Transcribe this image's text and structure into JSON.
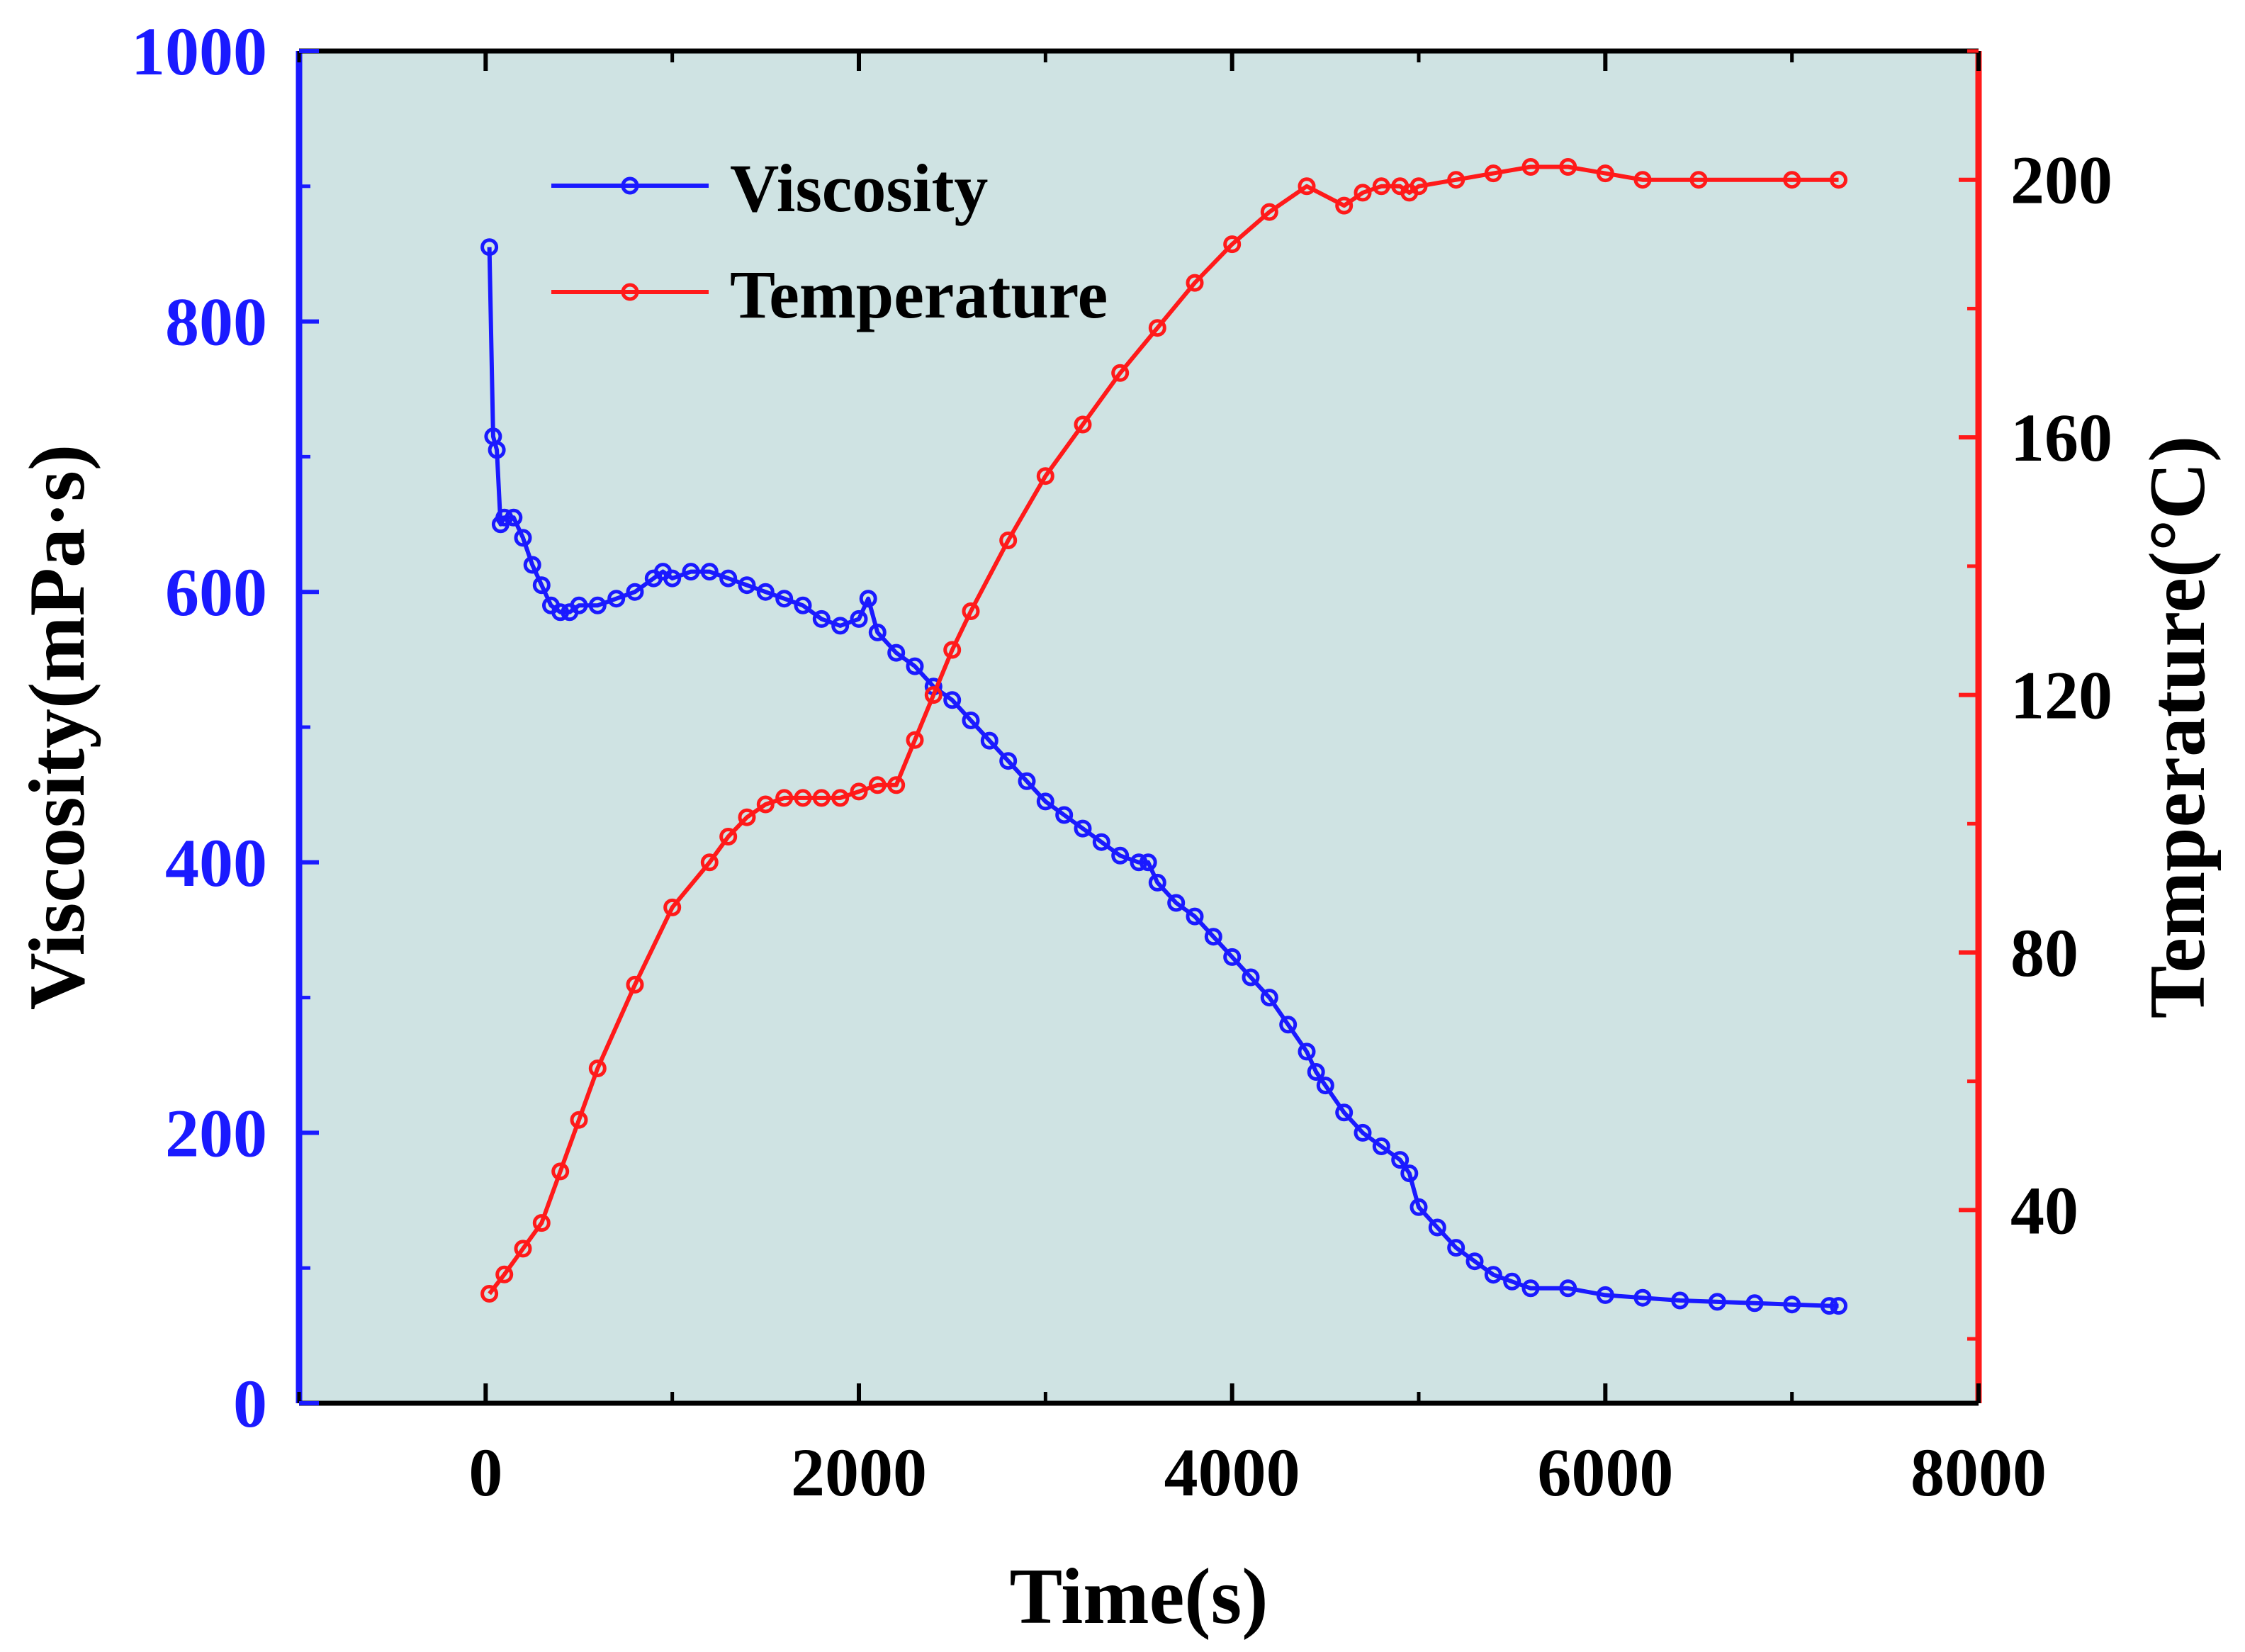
{
  "chart_data": {
    "type": "line",
    "title": "",
    "xlabel": "Time(s)",
    "ylabel_left": "Viscosity(mPa·s)",
    "ylabel_right": "Temperature(°C)",
    "xlim": [
      -1000,
      8000
    ],
    "ylim_left": [
      0,
      1000
    ],
    "ylim_right": [
      10,
      220
    ],
    "x_ticks": [
      0,
      2000,
      4000,
      6000,
      8000
    ],
    "y_left_ticks": [
      0,
      200,
      400,
      600,
      800,
      1000
    ],
    "y_right_ticks": [
      40,
      80,
      120,
      160,
      200
    ],
    "background_color": "#cfe3e3",
    "legend_position": "top-left",
    "legend": [
      {
        "label": "Viscosity",
        "color": "#1a1aff"
      },
      {
        "label": "Temperature",
        "color": "#ff1a1a"
      }
    ],
    "series": [
      {
        "name": "Viscosity",
        "axis": "left",
        "color": "#1a1aff",
        "x": [
          20,
          40,
          60,
          80,
          100,
          150,
          200,
          250,
          300,
          350,
          400,
          450,
          500,
          600,
          700,
          800,
          900,
          950,
          1000,
          1100,
          1200,
          1300,
          1400,
          1500,
          1600,
          1700,
          1800,
          1900,
          2000,
          2050,
          2100,
          2200,
          2300,
          2400,
          2500,
          2600,
          2700,
          2800,
          2900,
          3000,
          3100,
          3200,
          3300,
          3400,
          3500,
          3550,
          3600,
          3700,
          3800,
          3900,
          4000,
          4100,
          4200,
          4300,
          4400,
          4450,
          4500,
          4600,
          4700,
          4800,
          4900,
          4950,
          5000,
          5100,
          5200,
          5300,
          5400,
          5500,
          5600,
          5800,
          6000,
          6200,
          6400,
          6600,
          6800,
          7000,
          7200,
          7250
        ],
        "y": [
          855,
          715,
          705,
          650,
          655,
          655,
          640,
          620,
          605,
          590,
          585,
          585,
          590,
          590,
          595,
          600,
          610,
          615,
          610,
          615,
          615,
          610,
          605,
          600,
          595,
          590,
          580,
          575,
          580,
          595,
          570,
          555,
          545,
          530,
          520,
          505,
          490,
          475,
          460,
          445,
          435,
          425,
          415,
          405,
          400,
          400,
          385,
          370,
          360,
          345,
          330,
          315,
          300,
          280,
          260,
          245,
          235,
          215,
          200,
          190,
          180,
          170,
          145,
          130,
          115,
          105,
          95,
          90,
          85,
          85,
          80,
          78,
          76,
          75,
          74,
          73,
          72,
          72
        ]
      },
      {
        "name": "Temperature",
        "axis": "right",
        "color": "#ff1a1a",
        "x": [
          20,
          100,
          200,
          300,
          400,
          500,
          600,
          800,
          1000,
          1200,
          1300,
          1400,
          1500,
          1600,
          1700,
          1800,
          1900,
          2000,
          2100,
          2200,
          2300,
          2400,
          2500,
          2600,
          2800,
          3000,
          3200,
          3400,
          3600,
          3800,
          4000,
          4200,
          4400,
          4600,
          4700,
          4800,
          4900,
          4950,
          5000,
          5200,
          5400,
          5600,
          5800,
          6000,
          6200,
          6500,
          7000,
          7250
        ],
        "y": [
          27,
          30,
          34,
          38,
          46,
          54,
          62,
          75,
          87,
          94,
          98,
          101,
          103,
          104,
          104,
          104,
          104,
          105,
          106,
          106,
          113,
          120,
          127,
          133,
          144,
          154,
          162,
          170,
          177,
          184,
          190,
          195,
          199,
          196,
          198,
          199,
          199,
          198,
          199,
          200,
          201,
          202,
          202,
          201,
          200,
          200,
          200,
          200
        ]
      }
    ]
  }
}
